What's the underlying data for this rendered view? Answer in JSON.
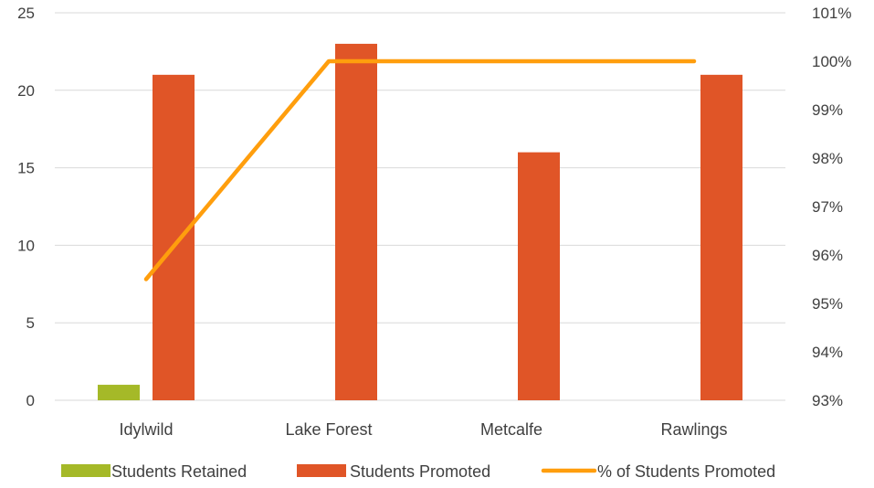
{
  "chart_data": {
    "type": "bar",
    "categories": [
      "Idylwild",
      "Lake Forest",
      "Metcalfe",
      "Rawlings"
    ],
    "series": [
      {
        "name": "Students Retained",
        "type": "bar",
        "axis": "left",
        "color": "#a5b928",
        "values": [
          1,
          0,
          0,
          0
        ]
      },
      {
        "name": "Students Promoted",
        "type": "bar",
        "axis": "left",
        "color": "#e05527",
        "values": [
          21,
          23,
          16,
          21
        ]
      },
      {
        "name": "% of Students Promoted",
        "type": "line",
        "axis": "right",
        "color": "#ff9e0d",
        "values": [
          95.5,
          100,
          100,
          100
        ]
      }
    ],
    "y_left": {
      "min": 0,
      "max": 25,
      "ticks": [
        "0",
        "5",
        "10",
        "15",
        "20",
        "25"
      ]
    },
    "y_right": {
      "min": 93,
      "max": 101,
      "ticks": [
        "93%",
        "94%",
        "95%",
        "96%",
        "97%",
        "98%",
        "99%",
        "100%",
        "101%"
      ]
    },
    "grid": true,
    "legend_position": "bottom",
    "title": "",
    "xlabel": "",
    "ylabel": ""
  }
}
